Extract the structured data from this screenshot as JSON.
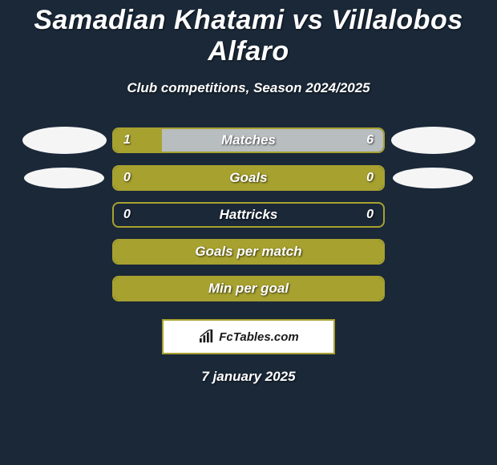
{
  "title": "Samadian Khatami vs Villalobos Alfaro",
  "subtitle": "Club competitions, Season 2024/2025",
  "date": "7 january 2025",
  "colors": {
    "background": "#1a2838",
    "bar_border": "#a7a130",
    "bar_fill": "#a7a130",
    "bar_alt": "#b8bdbf",
    "text": "#ffffff",
    "avatar": "#f5f5f5",
    "badge_bg": "#ffffff",
    "badge_border": "#a7a130",
    "badge_text": "#1a1a1a"
  },
  "badge": {
    "label": "FcTables.com",
    "icon": "bar-chart-icon"
  },
  "stats": [
    {
      "label": "Matches",
      "left_value": "1",
      "right_value": "6",
      "left_pct": 18,
      "right_pct": 82,
      "left_color": "#a7a130",
      "right_color": "#b8bdbf",
      "show_left_avatar": true,
      "show_right_avatar": true,
      "avatar_size": "large",
      "show_values": true
    },
    {
      "label": "Goals",
      "left_value": "0",
      "right_value": "0",
      "left_pct": 0,
      "right_pct": 0,
      "full_fill": true,
      "full_color": "#a7a130",
      "show_left_avatar": true,
      "show_right_avatar": true,
      "avatar_size": "small",
      "show_values": true
    },
    {
      "label": "Hattricks",
      "left_value": "0",
      "right_value": "0",
      "left_pct": 0,
      "right_pct": 0,
      "full_fill": false,
      "show_left_avatar": false,
      "show_right_avatar": false,
      "show_values": true
    },
    {
      "label": "Goals per match",
      "left_value": "",
      "right_value": "",
      "left_pct": 0,
      "right_pct": 0,
      "full_fill": true,
      "full_color": "#a7a130",
      "show_left_avatar": false,
      "show_right_avatar": false,
      "show_values": false
    },
    {
      "label": "Min per goal",
      "left_value": "",
      "right_value": "",
      "left_pct": 0,
      "right_pct": 0,
      "full_fill": true,
      "full_color": "#a7a130",
      "show_left_avatar": false,
      "show_right_avatar": false,
      "show_values": false
    }
  ]
}
